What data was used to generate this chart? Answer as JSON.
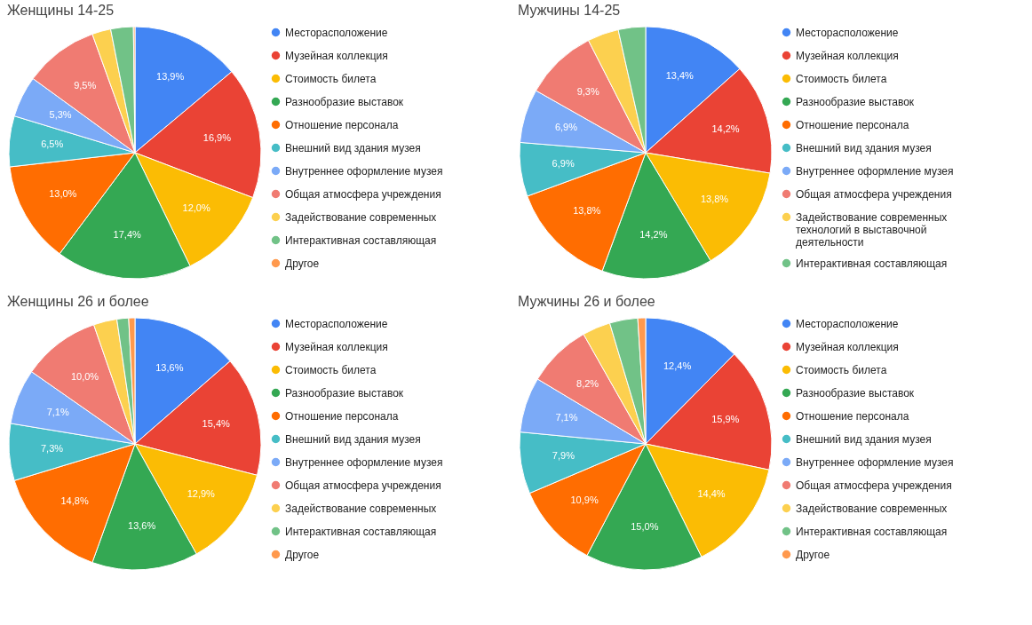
{
  "chart_data": [
    {
      "type": "pie",
      "title": "Женщины 14-25",
      "legend": "right",
      "categories": [
        "Месторасположение",
        "Музейная коллекция",
        "Стоимость билета",
        "Разнообразие выставок",
        "Отношение персонала",
        "Внешний вид здания музея",
        "Внутреннее оформление музея",
        "Общая атмосфера учреждения",
        "Задействование современных",
        "Интерактивная составляющая",
        "Другое"
      ],
      "values": [
        13.9,
        16.9,
        12.0,
        17.4,
        13.0,
        6.5,
        5.3,
        9.5,
        2.4,
        2.9,
        0.2
      ],
      "value_labels": [
        "13,9%",
        "16,9%",
        "12,0%",
        "17,4%",
        "13,0%",
        "6,5%",
        "5,3%",
        "9,5%",
        null,
        null,
        null
      ],
      "colors": [
        "#4285f4",
        "#ea4335",
        "#fbbc04",
        "#34a853",
        "#ff6d01",
        "#46bdc6",
        "#7baaf7",
        "#f07b72",
        "#fcd04f",
        "#71c287",
        "#ff994d"
      ]
    },
    {
      "type": "pie",
      "title": "Мужчины 14-25",
      "legend": "right",
      "categories": [
        "Месторасположение",
        "Музейная коллекция",
        "Стоимость билета",
        "Разнообразие выставок",
        "Отношение персонала",
        "Внешний вид здания музея",
        "Внутреннее оформление музея",
        "Общая атмосфера учреждения",
        "Задействование современных технологий в выставочной деятельности",
        "Интерактивная составляющая"
      ],
      "values": [
        13.4,
        14.2,
        13.8,
        14.2,
        13.8,
        6.9,
        6.9,
        9.3,
        4.0,
        3.5
      ],
      "value_labels": [
        "13,4%",
        "14,2%",
        "13,8%",
        "14,2%",
        "13,8%",
        "6,9%",
        "6,9%",
        "9,3%",
        null,
        null
      ],
      "colors": [
        "#4285f4",
        "#ea4335",
        "#fbbc04",
        "#34a853",
        "#ff6d01",
        "#46bdc6",
        "#7baaf7",
        "#f07b72",
        "#fcd04f",
        "#71c287"
      ]
    },
    {
      "type": "pie",
      "title": "Женщины 26 и более",
      "legend": "right",
      "categories": [
        "Месторасположение",
        "Музейная коллекция",
        "Стоимость билета",
        "Разнообразие выставок",
        "Отношение персонала",
        "Внешний вид здания музея",
        "Внутреннее оформление музея",
        "Общая атмосфера учреждения",
        "Задействование современных",
        "Интерактивная составляющая",
        "Другое"
      ],
      "values": [
        13.6,
        15.4,
        12.9,
        13.6,
        14.8,
        7.3,
        7.1,
        10.0,
        3.0,
        1.5,
        0.8
      ],
      "value_labels": [
        "13,6%",
        "15,4%",
        "12,9%",
        "13,6%",
        "14,8%",
        "7,3%",
        "7,1%",
        "10,0%",
        null,
        null,
        null
      ],
      "colors": [
        "#4285f4",
        "#ea4335",
        "#fbbc04",
        "#34a853",
        "#ff6d01",
        "#46bdc6",
        "#7baaf7",
        "#f07b72",
        "#fcd04f",
        "#71c287",
        "#ff994d"
      ]
    },
    {
      "type": "pie",
      "title": "Мужчины 26 и более",
      "legend": "right",
      "categories": [
        "Месторасположение",
        "Музейная коллекция",
        "Стоимость билета",
        "Разнообразие выставок",
        "Отношение персонала",
        "Внешний вид здания музея",
        "Внутреннее оформление музея",
        "Общая атмосфера учреждения",
        "Задействование современных",
        "Интерактивная составляющая",
        "Другое"
      ],
      "values": [
        12.4,
        15.9,
        14.4,
        15.0,
        10.9,
        7.9,
        7.1,
        8.2,
        3.6,
        3.6,
        1.0
      ],
      "value_labels": [
        "12,4%",
        "15,9%",
        "14,4%",
        "15,0%",
        "10,9%",
        "7,9%",
        "7,1%",
        "8,2%",
        null,
        null,
        null
      ],
      "colors": [
        "#4285f4",
        "#ea4335",
        "#fbbc04",
        "#34a853",
        "#ff6d01",
        "#46bdc6",
        "#7baaf7",
        "#f07b72",
        "#fcd04f",
        "#71c287",
        "#ff994d"
      ]
    }
  ]
}
